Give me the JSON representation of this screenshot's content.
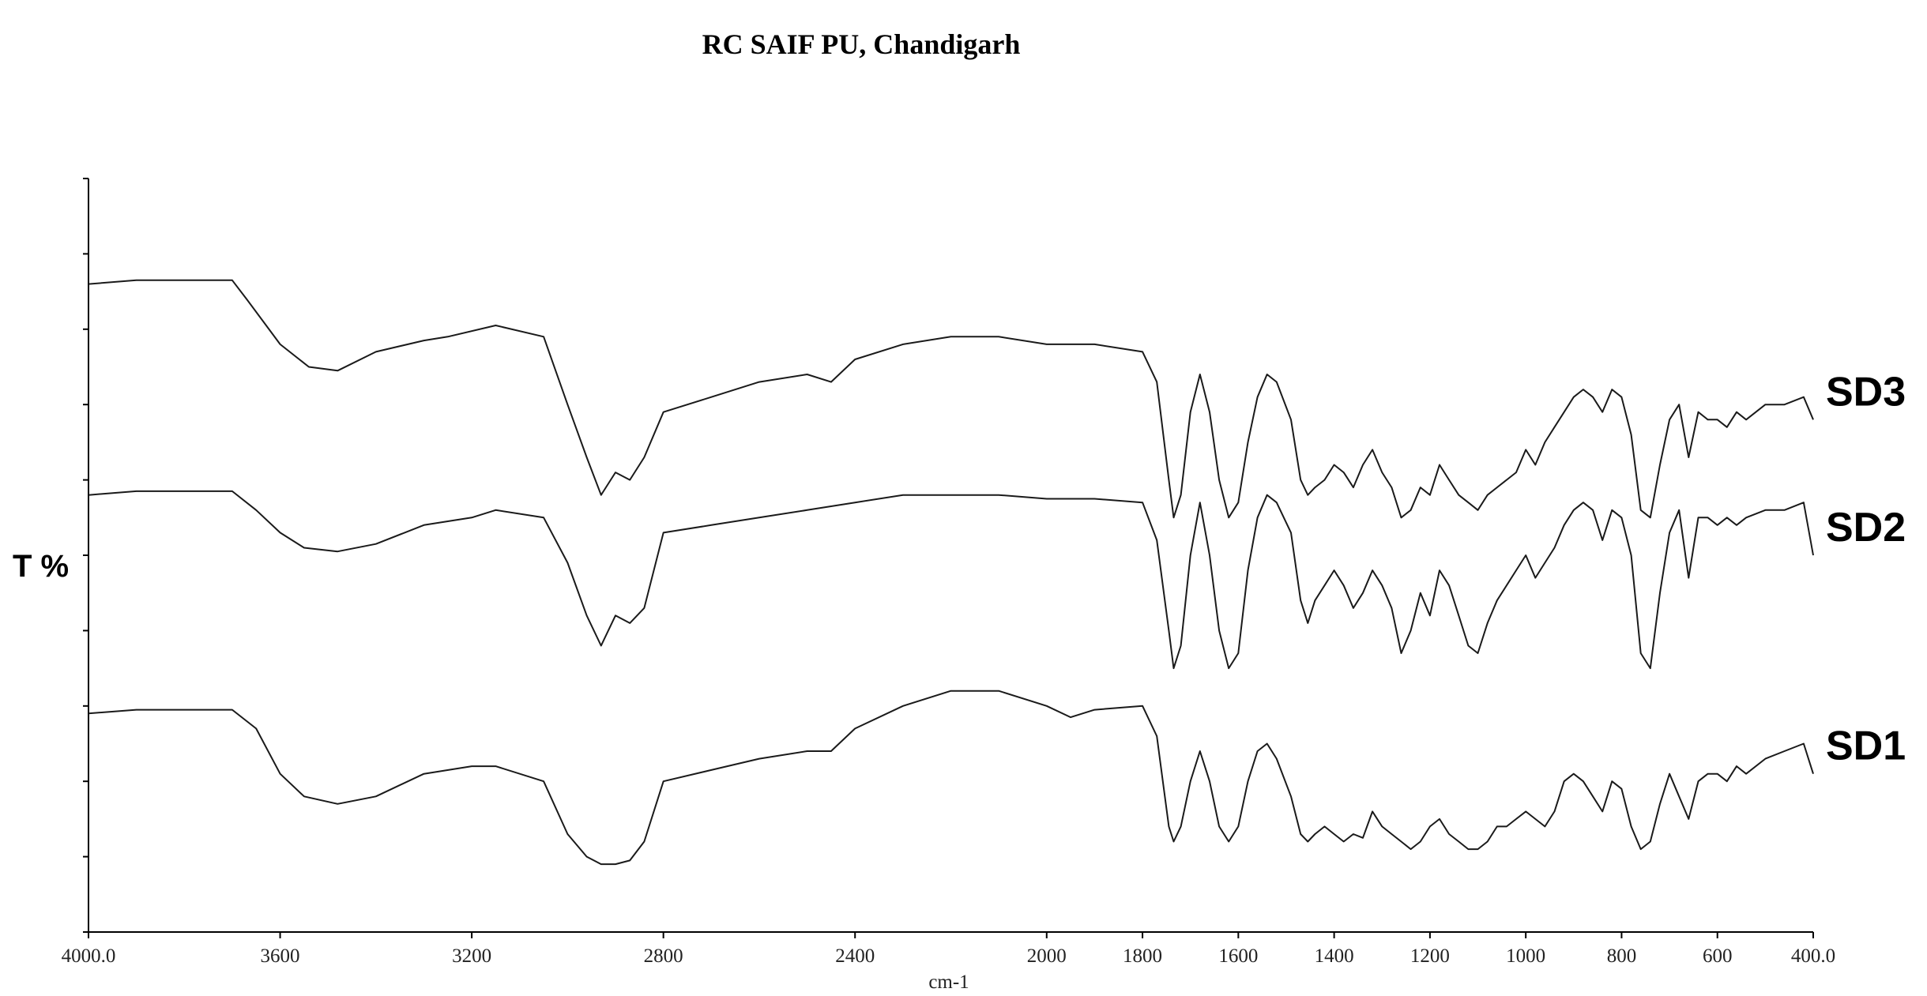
{
  "chart_data": {
    "type": "line",
    "title": "RC SAIF PU, Chandigarh",
    "xlabel": "cm-1",
    "ylabel": "T %",
    "xlim": [
      4000.0,
      400.0
    ],
    "x_reversed": true,
    "x_ticks": [
      "4000.0",
      "3600",
      "3200",
      "2800",
      "2400",
      "2000",
      "1800",
      "1600",
      "1400",
      "1200",
      "1000",
      "800",
      "600",
      "400.0"
    ],
    "y_tick_count": 11,
    "grid": false,
    "legend": "series labels at right end of each trace",
    "series": [
      {
        "name": "SD3",
        "points": [
          [
            4000,
            86
          ],
          [
            3900,
            86.5
          ],
          [
            3700,
            86.5
          ],
          [
            3670,
            84
          ],
          [
            3600,
            78
          ],
          [
            3540,
            75
          ],
          [
            3480,
            74.5
          ],
          [
            3400,
            77
          ],
          [
            3300,
            78.5
          ],
          [
            3250,
            79
          ],
          [
            3150,
            80.5
          ],
          [
            3050,
            79
          ],
          [
            3000,
            70
          ],
          [
            2960,
            63
          ],
          [
            2930,
            58
          ],
          [
            2900,
            61
          ],
          [
            2870,
            60
          ],
          [
            2840,
            63
          ],
          [
            2800,
            69
          ],
          [
            2700,
            71
          ],
          [
            2600,
            73
          ],
          [
            2500,
            74
          ],
          [
            2450,
            73
          ],
          [
            2400,
            76
          ],
          [
            2300,
            78
          ],
          [
            2200,
            79
          ],
          [
            2100,
            79
          ],
          [
            2000,
            78
          ],
          [
            1900,
            78
          ],
          [
            1800,
            77
          ],
          [
            1770,
            73
          ],
          [
            1745,
            60
          ],
          [
            1735,
            55
          ],
          [
            1720,
            58
          ],
          [
            1700,
            69
          ],
          [
            1680,
            74
          ],
          [
            1660,
            69
          ],
          [
            1640,
            60
          ],
          [
            1620,
            55
          ],
          [
            1600,
            57
          ],
          [
            1580,
            65
          ],
          [
            1560,
            71
          ],
          [
            1540,
            74
          ],
          [
            1520,
            73
          ],
          [
            1490,
            68
          ],
          [
            1470,
            60
          ],
          [
            1455,
            58
          ],
          [
            1440,
            59
          ],
          [
            1420,
            60
          ],
          [
            1400,
            62
          ],
          [
            1380,
            61
          ],
          [
            1360,
            59
          ],
          [
            1340,
            62
          ],
          [
            1320,
            64
          ],
          [
            1300,
            61
          ],
          [
            1280,
            59
          ],
          [
            1260,
            55
          ],
          [
            1240,
            56
          ],
          [
            1220,
            59
          ],
          [
            1200,
            58
          ],
          [
            1180,
            62
          ],
          [
            1160,
            60
          ],
          [
            1140,
            58
          ],
          [
            1120,
            57
          ],
          [
            1100,
            56
          ],
          [
            1080,
            58
          ],
          [
            1060,
            59
          ],
          [
            1040,
            60
          ],
          [
            1020,
            61
          ],
          [
            1000,
            64
          ],
          [
            980,
            62
          ],
          [
            960,
            65
          ],
          [
            940,
            67
          ],
          [
            920,
            69
          ],
          [
            900,
            71
          ],
          [
            880,
            72
          ],
          [
            860,
            71
          ],
          [
            840,
            69
          ],
          [
            820,
            72
          ],
          [
            800,
            71
          ],
          [
            780,
            66
          ],
          [
            760,
            56
          ],
          [
            740,
            55
          ],
          [
            720,
            62
          ],
          [
            700,
            68
          ],
          [
            680,
            70
          ],
          [
            660,
            63
          ],
          [
            640,
            69
          ],
          [
            620,
            68
          ],
          [
            600,
            68
          ],
          [
            580,
            67
          ],
          [
            560,
            69
          ],
          [
            540,
            68
          ],
          [
            500,
            70
          ],
          [
            460,
            70
          ],
          [
            420,
            71
          ],
          [
            400,
            68
          ]
        ]
      },
      {
        "name": "SD2",
        "points": [
          [
            4000,
            58
          ],
          [
            3900,
            58.5
          ],
          [
            3700,
            58.5
          ],
          [
            3650,
            56
          ],
          [
            3600,
            53
          ],
          [
            3550,
            51
          ],
          [
            3480,
            50.5
          ],
          [
            3400,
            51.5
          ],
          [
            3300,
            54
          ],
          [
            3200,
            55
          ],
          [
            3150,
            56
          ],
          [
            3050,
            55
          ],
          [
            3000,
            49
          ],
          [
            2960,
            42
          ],
          [
            2930,
            38
          ],
          [
            2900,
            42
          ],
          [
            2870,
            41
          ],
          [
            2840,
            43
          ],
          [
            2800,
            53
          ],
          [
            2700,
            54
          ],
          [
            2600,
            55
          ],
          [
            2500,
            56
          ],
          [
            2400,
            57
          ],
          [
            2300,
            58
          ],
          [
            2200,
            58
          ],
          [
            2100,
            58
          ],
          [
            2000,
            57.5
          ],
          [
            1900,
            57.5
          ],
          [
            1800,
            57
          ],
          [
            1770,
            52
          ],
          [
            1745,
            40
          ],
          [
            1735,
            35
          ],
          [
            1720,
            38
          ],
          [
            1700,
            50
          ],
          [
            1680,
            57
          ],
          [
            1660,
            50
          ],
          [
            1640,
            40
          ],
          [
            1620,
            35
          ],
          [
            1600,
            37
          ],
          [
            1580,
            48
          ],
          [
            1560,
            55
          ],
          [
            1540,
            58
          ],
          [
            1520,
            57
          ],
          [
            1490,
            53
          ],
          [
            1470,
            44
          ],
          [
            1455,
            41
          ],
          [
            1440,
            44
          ],
          [
            1420,
            46
          ],
          [
            1400,
            48
          ],
          [
            1380,
            46
          ],
          [
            1360,
            43
          ],
          [
            1340,
            45
          ],
          [
            1320,
            48
          ],
          [
            1300,
            46
          ],
          [
            1280,
            43
          ],
          [
            1260,
            37
          ],
          [
            1240,
            40
          ],
          [
            1220,
            45
          ],
          [
            1200,
            42
          ],
          [
            1180,
            48
          ],
          [
            1160,
            46
          ],
          [
            1140,
            42
          ],
          [
            1120,
            38
          ],
          [
            1100,
            37
          ],
          [
            1080,
            41
          ],
          [
            1060,
            44
          ],
          [
            1040,
            46
          ],
          [
            1020,
            48
          ],
          [
            1000,
            50
          ],
          [
            980,
            47
          ],
          [
            960,
            49
          ],
          [
            940,
            51
          ],
          [
            920,
            54
          ],
          [
            900,
            56
          ],
          [
            880,
            57
          ],
          [
            860,
            56
          ],
          [
            840,
            52
          ],
          [
            820,
            56
          ],
          [
            800,
            55
          ],
          [
            780,
            50
          ],
          [
            760,
            37
          ],
          [
            740,
            35
          ],
          [
            720,
            45
          ],
          [
            700,
            53
          ],
          [
            680,
            56
          ],
          [
            660,
            47
          ],
          [
            640,
            55
          ],
          [
            620,
            55
          ],
          [
            600,
            54
          ],
          [
            580,
            55
          ],
          [
            560,
            54
          ],
          [
            540,
            55
          ],
          [
            500,
            56
          ],
          [
            460,
            56
          ],
          [
            420,
            57
          ],
          [
            400,
            50
          ]
        ]
      },
      {
        "name": "SD1",
        "points": [
          [
            4000,
            29
          ],
          [
            3900,
            29.5
          ],
          [
            3700,
            29.5
          ],
          [
            3650,
            27
          ],
          [
            3600,
            21
          ],
          [
            3550,
            18
          ],
          [
            3480,
            17
          ],
          [
            3400,
            18
          ],
          [
            3300,
            21
          ],
          [
            3200,
            22
          ],
          [
            3150,
            22
          ],
          [
            3050,
            20
          ],
          [
            3000,
            13
          ],
          [
            2960,
            10
          ],
          [
            2930,
            9
          ],
          [
            2900,
            9
          ],
          [
            2870,
            9.5
          ],
          [
            2840,
            12
          ],
          [
            2800,
            20
          ],
          [
            2700,
            21.5
          ],
          [
            2600,
            23
          ],
          [
            2500,
            24
          ],
          [
            2450,
            24
          ],
          [
            2400,
            27
          ],
          [
            2300,
            30
          ],
          [
            2200,
            32
          ],
          [
            2100,
            32
          ],
          [
            2000,
            30
          ],
          [
            1950,
            28.5
          ],
          [
            1900,
            29.5
          ],
          [
            1800,
            30
          ],
          [
            1770,
            26
          ],
          [
            1745,
            14
          ],
          [
            1735,
            12
          ],
          [
            1720,
            14
          ],
          [
            1700,
            20
          ],
          [
            1680,
            24
          ],
          [
            1660,
            20
          ],
          [
            1640,
            14
          ],
          [
            1620,
            12
          ],
          [
            1600,
            14
          ],
          [
            1580,
            20
          ],
          [
            1560,
            24
          ],
          [
            1540,
            25
          ],
          [
            1520,
            23
          ],
          [
            1490,
            18
          ],
          [
            1470,
            13
          ],
          [
            1455,
            12
          ],
          [
            1440,
            13
          ],
          [
            1420,
            14
          ],
          [
            1400,
            13
          ],
          [
            1380,
            12
          ],
          [
            1360,
            13
          ],
          [
            1340,
            12.5
          ],
          [
            1320,
            16
          ],
          [
            1300,
            14
          ],
          [
            1280,
            13
          ],
          [
            1260,
            12
          ],
          [
            1240,
            11
          ],
          [
            1220,
            12
          ],
          [
            1200,
            14
          ],
          [
            1180,
            15
          ],
          [
            1160,
            13
          ],
          [
            1140,
            12
          ],
          [
            1120,
            11
          ],
          [
            1100,
            11
          ],
          [
            1080,
            12
          ],
          [
            1060,
            14
          ],
          [
            1040,
            14
          ],
          [
            1020,
            15
          ],
          [
            1000,
            16
          ],
          [
            980,
            15
          ],
          [
            960,
            14
          ],
          [
            940,
            16
          ],
          [
            920,
            20
          ],
          [
            900,
            21
          ],
          [
            880,
            20
          ],
          [
            860,
            18
          ],
          [
            840,
            16
          ],
          [
            820,
            20
          ],
          [
            800,
            19
          ],
          [
            780,
            14
          ],
          [
            760,
            11
          ],
          [
            740,
            12
          ],
          [
            720,
            17
          ],
          [
            700,
            21
          ],
          [
            680,
            18
          ],
          [
            660,
            15
          ],
          [
            640,
            20
          ],
          [
            620,
            21
          ],
          [
            600,
            21
          ],
          [
            580,
            20
          ],
          [
            560,
            22
          ],
          [
            540,
            21
          ],
          [
            500,
            23
          ],
          [
            460,
            24
          ],
          [
            420,
            25
          ],
          [
            400,
            21
          ]
        ]
      }
    ]
  }
}
